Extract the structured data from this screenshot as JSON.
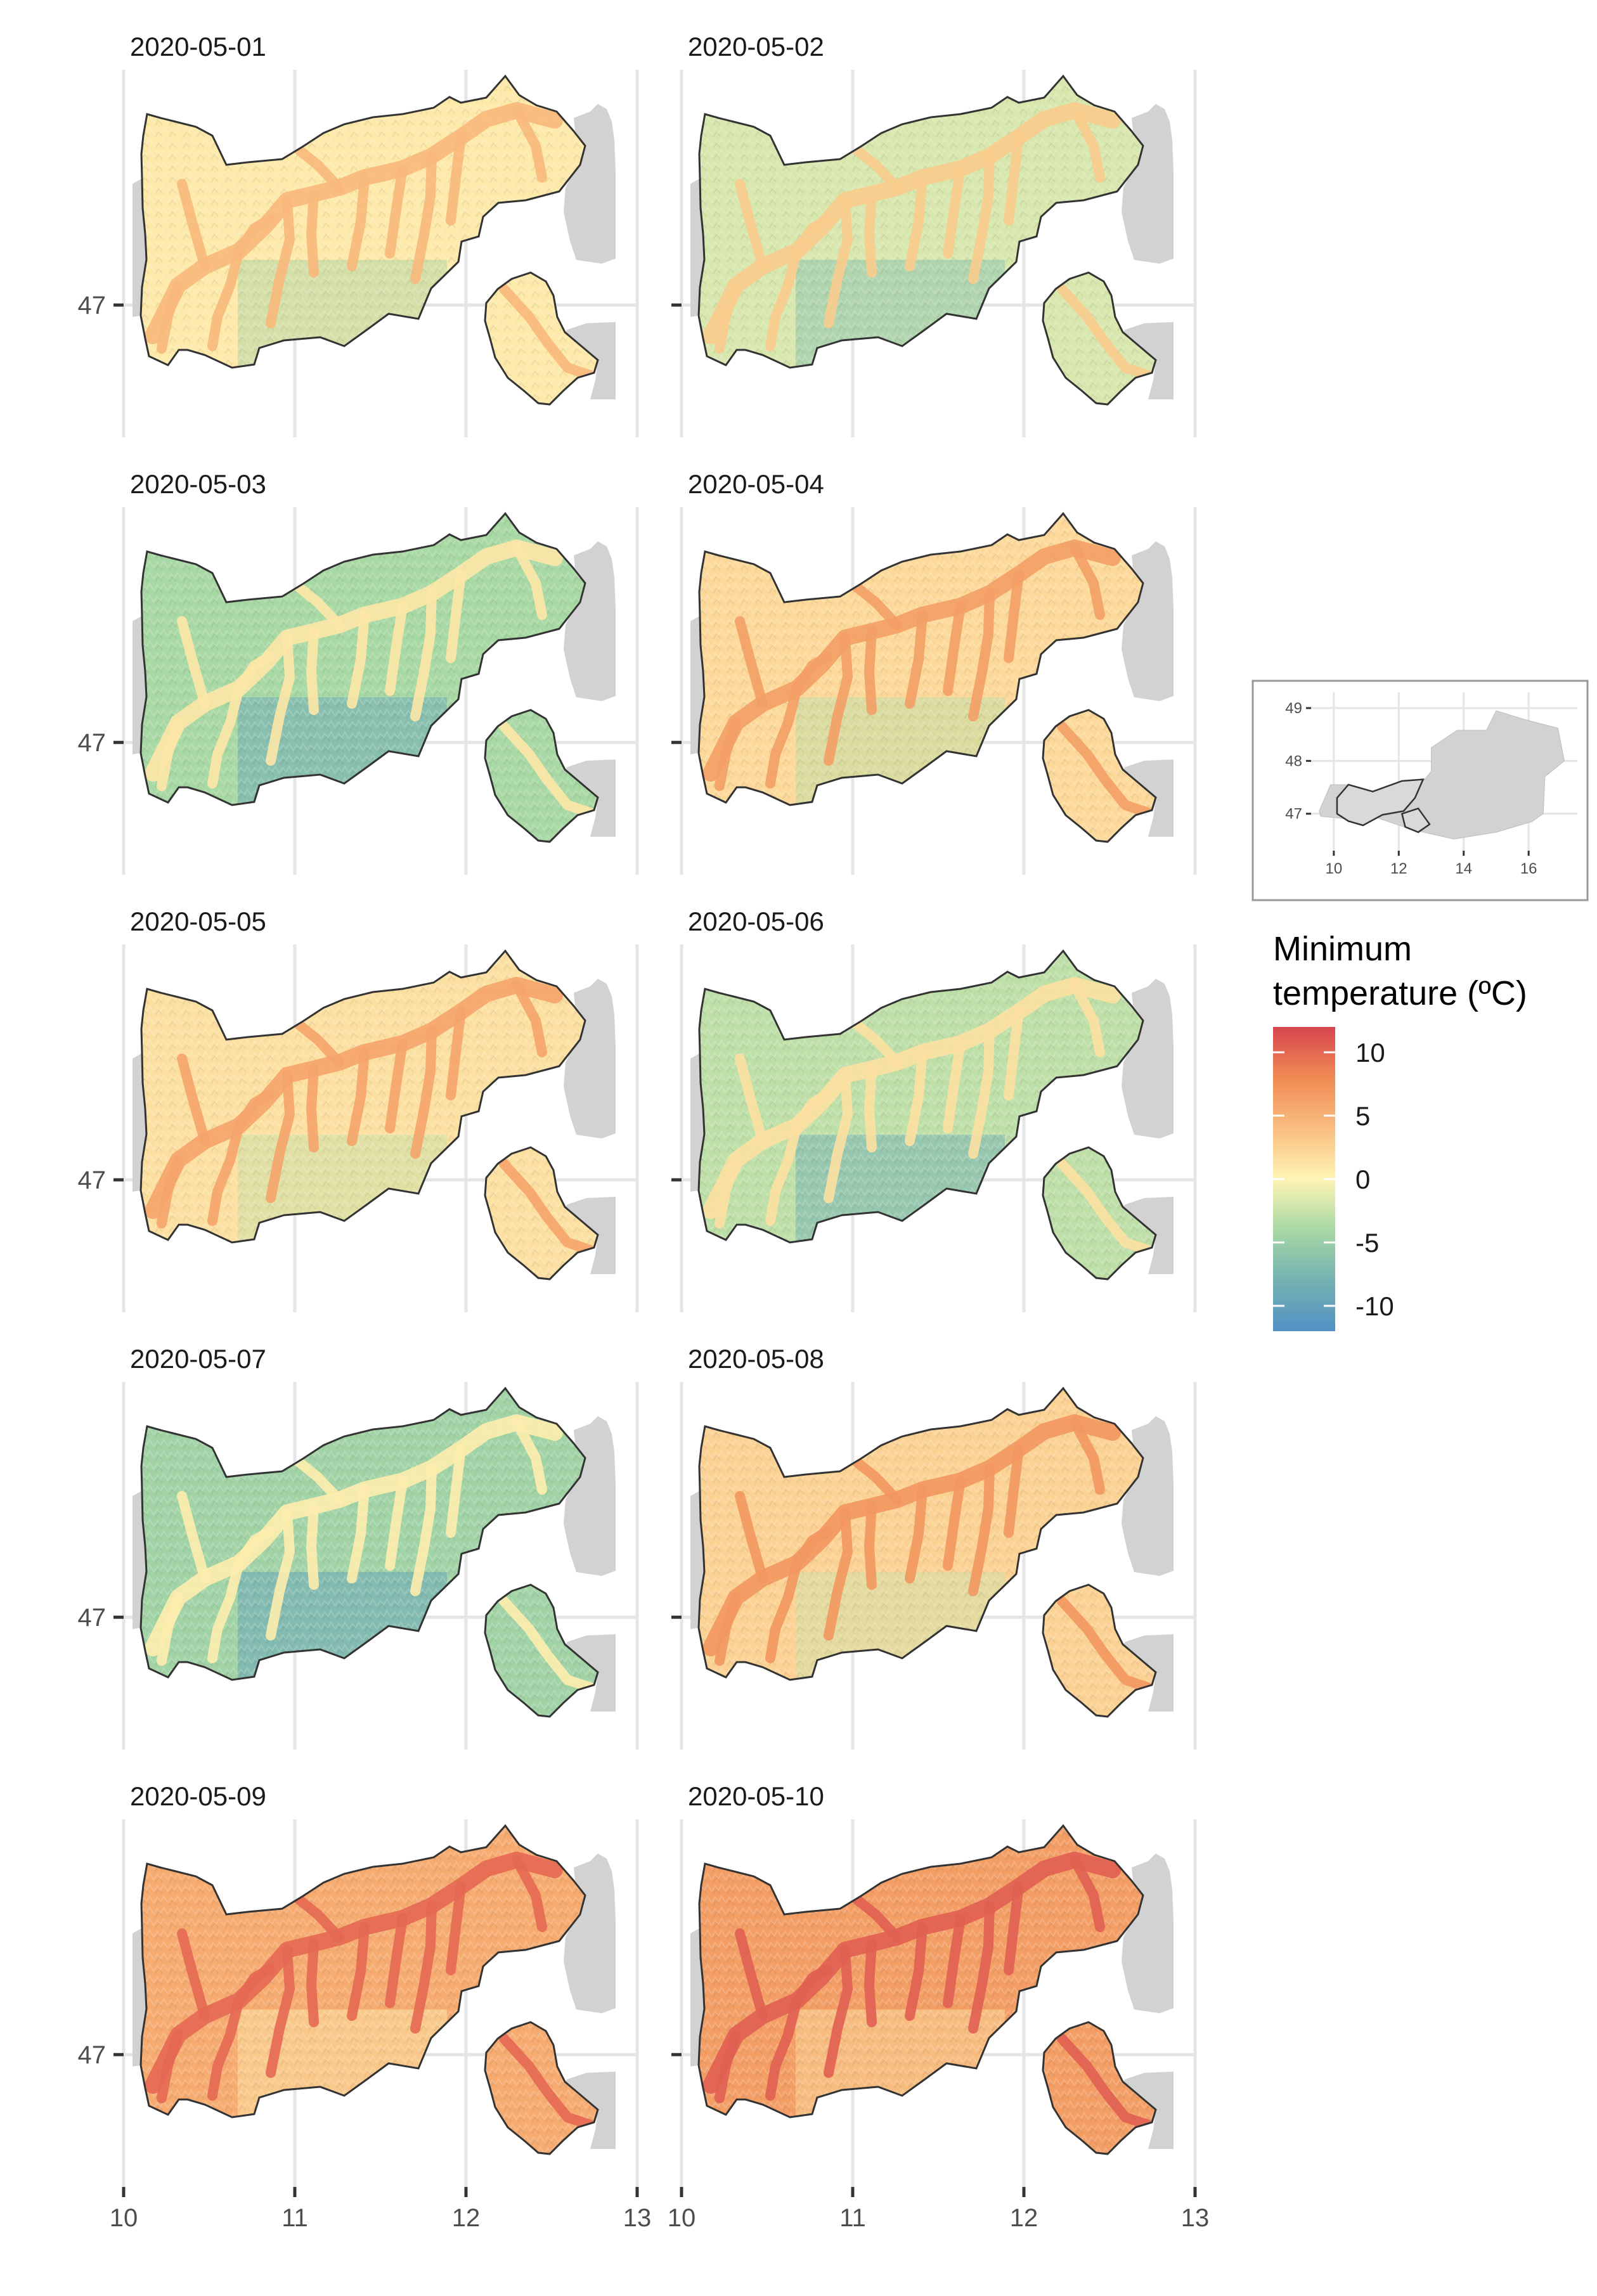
{
  "chart_data": {
    "type": "heatmap",
    "title": "",
    "xlabel": "",
    "ylabel": "",
    "xlim": [
      10,
      13
    ],
    "ylim": [
      46.55,
      47.8
    ],
    "x_ticks": [
      "10",
      "11",
      "12",
      "13"
    ],
    "y_ticks": [
      "47"
    ],
    "grid": true,
    "facet_layout": {
      "rows": 5,
      "cols": 2
    },
    "panels": [
      {
        "date": "2020-05-01",
        "mean_tmin": 0.8,
        "valley_tmin": 4.5,
        "peak_tmin": -4.5
      },
      {
        "date": "2020-05-02",
        "mean_tmin": -1.8,
        "valley_tmin": 3.0,
        "peak_tmin": -7.0
      },
      {
        "date": "2020-05-03",
        "mean_tmin": -4.0,
        "valley_tmin": 1.0,
        "peak_tmin": -10.0
      },
      {
        "date": "2020-05-04",
        "mean_tmin": 2.0,
        "valley_tmin": 6.5,
        "peak_tmin": -3.5
      },
      {
        "date": "2020-05-05",
        "mean_tmin": 1.5,
        "valley_tmin": 6.0,
        "peak_tmin": -3.0
      },
      {
        "date": "2020-05-06",
        "mean_tmin": -3.0,
        "valley_tmin": 1.5,
        "peak_tmin": -9.0
      },
      {
        "date": "2020-05-07",
        "mean_tmin": -4.5,
        "valley_tmin": 0.5,
        "peak_tmin": -10.5
      },
      {
        "date": "2020-05-08",
        "mean_tmin": 2.5,
        "valley_tmin": 7.0,
        "peak_tmin": -2.5
      },
      {
        "date": "2020-05-09",
        "mean_tmin": 5.5,
        "valley_tmin": 10.0,
        "peak_tmin": 0.5
      },
      {
        "date": "2020-05-10",
        "mean_tmin": 6.5,
        "valley_tmin": 10.5,
        "peak_tmin": 1.5
      }
    ],
    "legend": {
      "title": [
        "Minimum",
        "temperature (ºC)"
      ],
      "position": "right",
      "range": [
        -12,
        12
      ],
      "ticks": [
        10,
        5,
        0,
        -5,
        -10
      ],
      "colors": [
        "#d7454f",
        "#f08a54",
        "#fee290",
        "#a8d8a4",
        "#5190c4"
      ]
    },
    "inset": {
      "description": "Austria locator map",
      "xlim": [
        9.3,
        17.5
      ],
      "ylim": [
        46.3,
        49.3
      ],
      "x_ticks": [
        "10",
        "12",
        "14",
        "16"
      ],
      "y_ticks": [
        "49",
        "48",
        "47"
      ]
    }
  },
  "colors": {
    "panel_bg": "#ffffff",
    "grid": "#e5e5e5",
    "neighbor_land": "#d2d2d2",
    "outline": "#333333",
    "axis_text": "#4d4d4d"
  }
}
